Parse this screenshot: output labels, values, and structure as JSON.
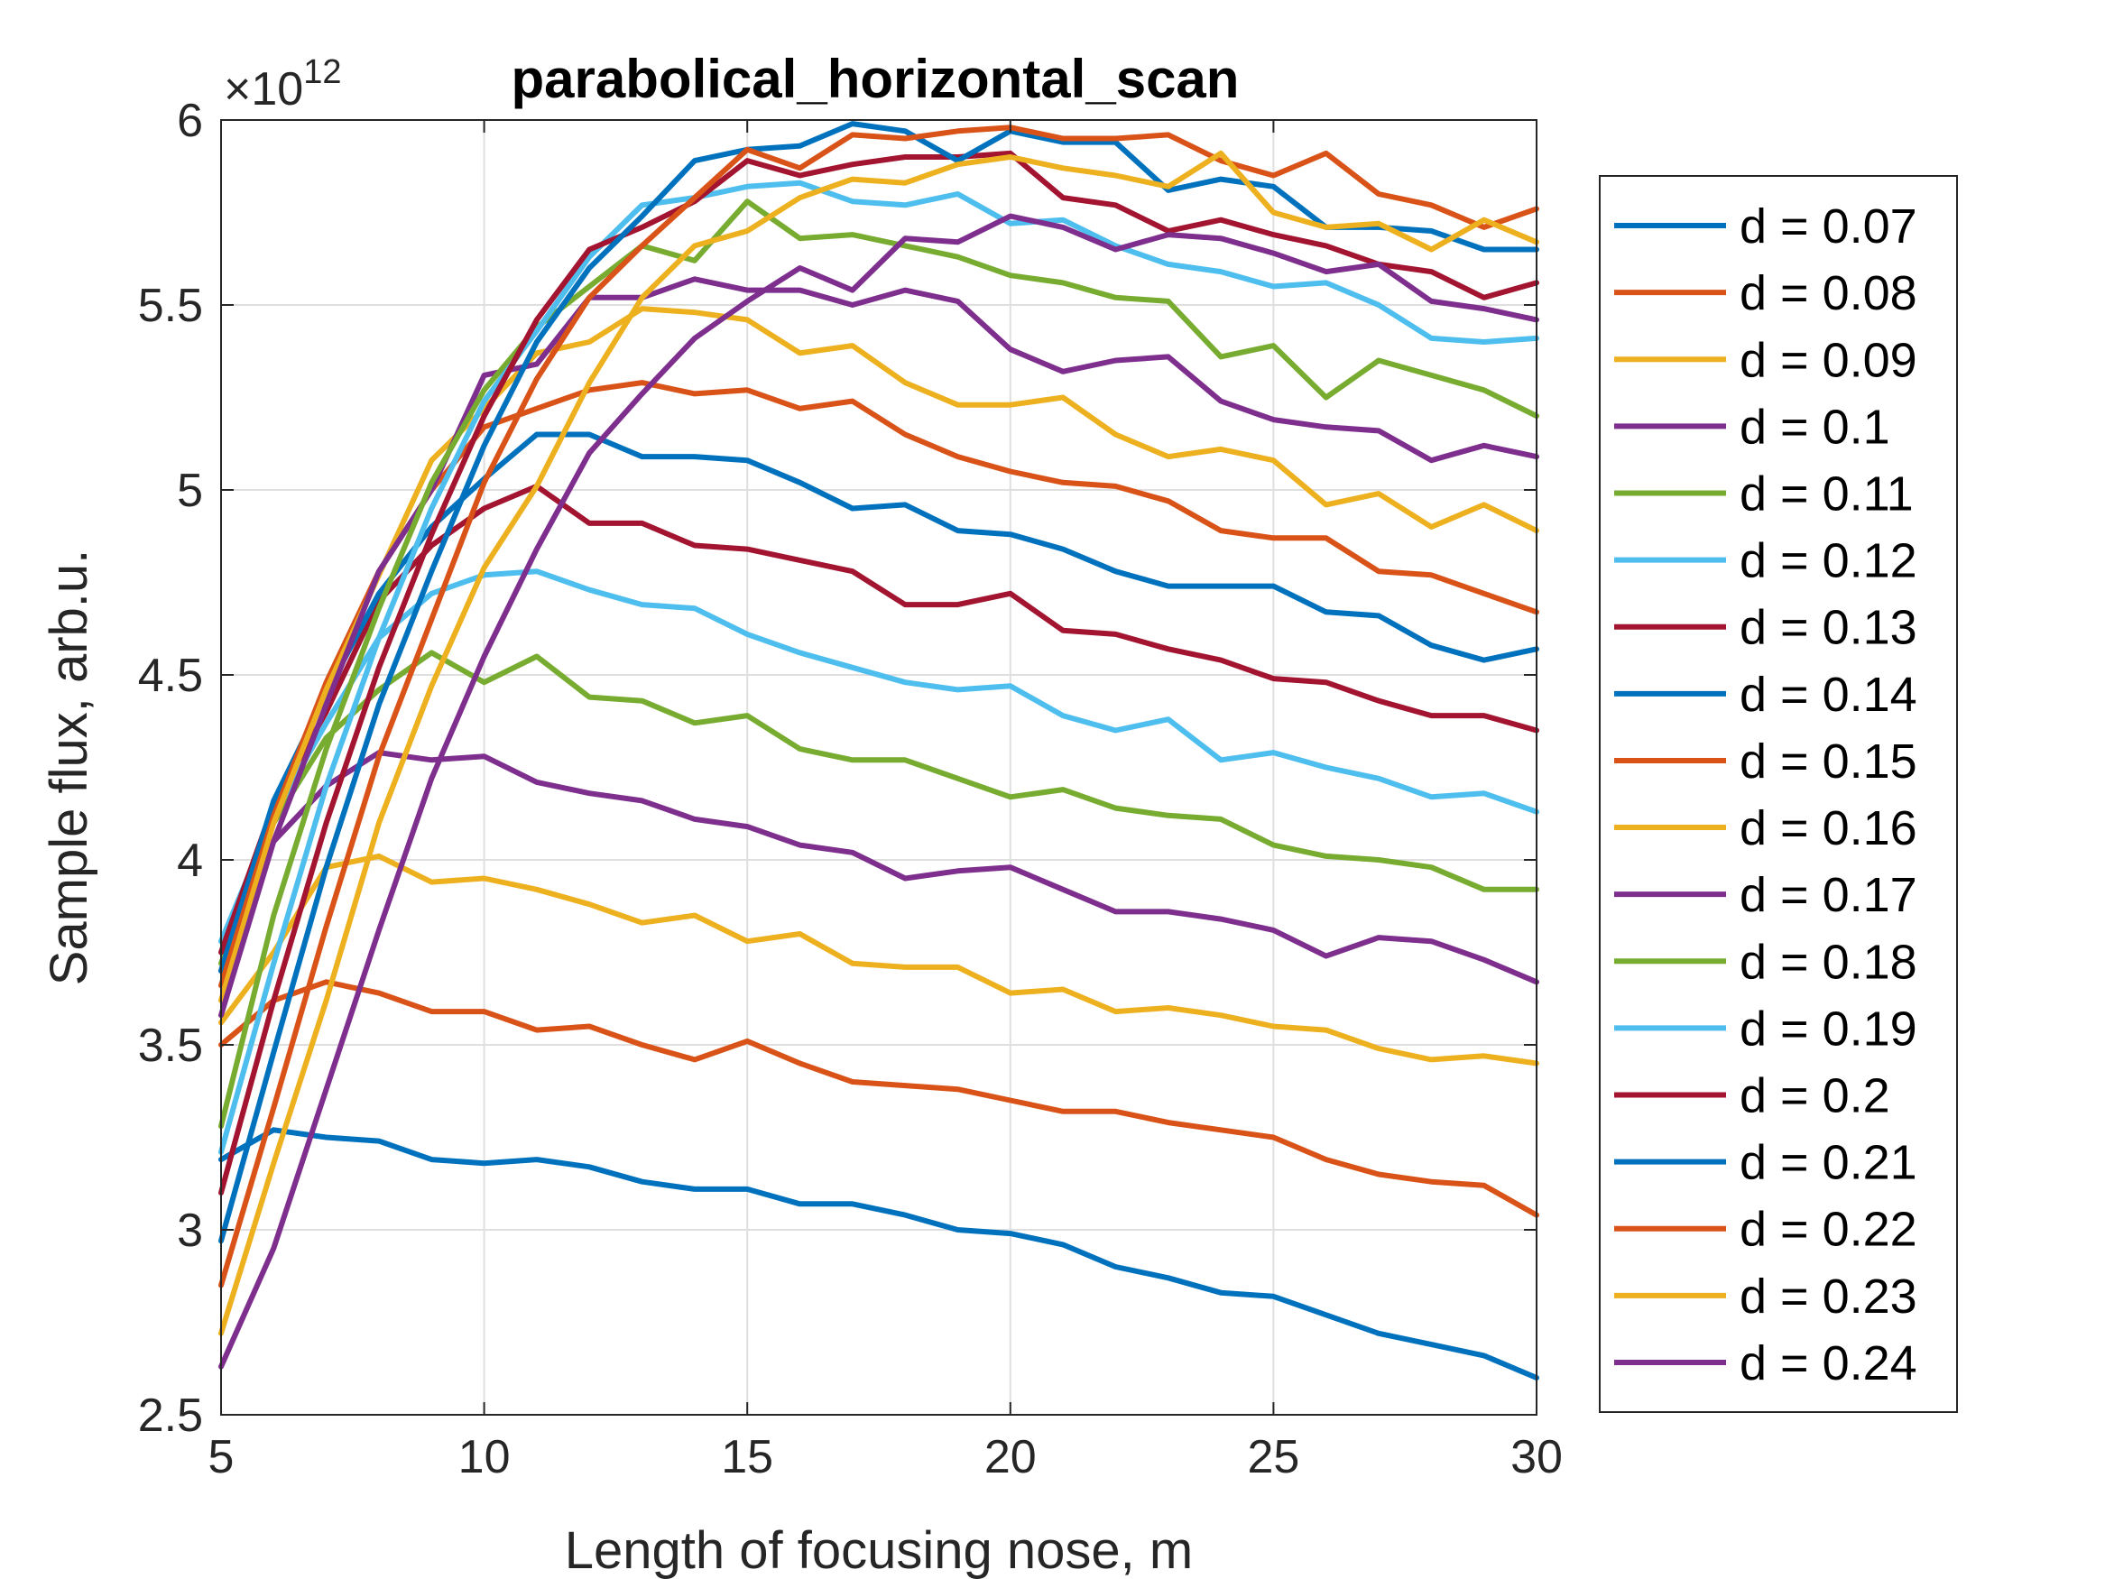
{
  "chart_data": {
    "type": "line",
    "title": "parabolical_horizontal_scan",
    "xlabel": "Length of focusing nose, m",
    "ylabel": "Sample flux, arb.u.",
    "y_exponent_label": "×10",
    "y_exponent_power": "12",
    "xlim": [
      5,
      30
    ],
    "ylim": [
      2.5,
      6
    ],
    "x_ticks": [
      5,
      10,
      15,
      20,
      25,
      30
    ],
    "y_ticks": [
      2.5,
      3,
      3.5,
      4,
      4.5,
      5,
      5.5,
      6
    ],
    "x_tick_labels": [
      "5",
      "10",
      "15",
      "20",
      "25",
      "30"
    ],
    "y_tick_labels": [
      "2.5",
      "3",
      "3.5",
      "4",
      "4.5",
      "5",
      "5.5",
      "6"
    ],
    "grid": true,
    "legend_position": "outside-right",
    "x": [
      5,
      6,
      7,
      8,
      9,
      10,
      11,
      12,
      13,
      14,
      15,
      16,
      17,
      18,
      19,
      20,
      21,
      22,
      23,
      24,
      25,
      26,
      27,
      28,
      29,
      30
    ],
    "series": [
      {
        "name": "d = 0.07",
        "color": "#0072BD",
        "values": [
          3.19,
          3.27,
          3.25,
          3.24,
          3.19,
          3.18,
          3.19,
          3.17,
          3.13,
          3.11,
          3.11,
          3.07,
          3.07,
          3.04,
          3.0,
          2.99,
          2.96,
          2.9,
          2.87,
          2.83,
          2.82,
          2.77,
          2.72,
          2.69,
          2.66,
          2.6
        ]
      },
      {
        "name": "d = 0.08",
        "color": "#D95319",
        "values": [
          3.5,
          3.62,
          3.67,
          3.64,
          3.59,
          3.59,
          3.54,
          3.55,
          3.5,
          3.46,
          3.51,
          3.45,
          3.4,
          3.39,
          3.38,
          3.35,
          3.32,
          3.32,
          3.29,
          3.27,
          3.25,
          3.19,
          3.15,
          3.13,
          3.12,
          3.04
        ]
      },
      {
        "name": "d = 0.09",
        "color": "#EDB120",
        "values": [
          3.56,
          3.75,
          3.98,
          4.01,
          3.94,
          3.95,
          3.92,
          3.88,
          3.83,
          3.85,
          3.78,
          3.8,
          3.72,
          3.71,
          3.71,
          3.64,
          3.65,
          3.59,
          3.6,
          3.58,
          3.55,
          3.54,
          3.49,
          3.46,
          3.47,
          3.45
        ]
      },
      {
        "name": "d = 0.1",
        "color": "#7E2F8E",
        "values": [
          3.7,
          4.05,
          4.2,
          4.29,
          4.27,
          4.28,
          4.21,
          4.18,
          4.16,
          4.11,
          4.09,
          4.04,
          4.02,
          3.95,
          3.97,
          3.98,
          3.92,
          3.86,
          3.86,
          3.84,
          3.81,
          3.74,
          3.79,
          3.78,
          3.73,
          3.67
        ]
      },
      {
        "name": "d = 0.11",
        "color": "#77AC30",
        "values": [
          3.72,
          4.1,
          4.33,
          4.46,
          4.56,
          4.48,
          4.55,
          4.44,
          4.43,
          4.37,
          4.39,
          4.3,
          4.27,
          4.27,
          4.22,
          4.17,
          4.19,
          4.14,
          4.12,
          4.11,
          4.04,
          4.01,
          4.0,
          3.98,
          3.92,
          3.92
        ]
      },
      {
        "name": "d = 0.12",
        "color": "#4DBEEE",
        "values": [
          3.78,
          4.12,
          4.37,
          4.6,
          4.72,
          4.77,
          4.78,
          4.73,
          4.69,
          4.68,
          4.61,
          4.56,
          4.52,
          4.48,
          4.46,
          4.47,
          4.39,
          4.35,
          4.38,
          4.27,
          4.29,
          4.25,
          4.22,
          4.17,
          4.18,
          4.13
        ]
      },
      {
        "name": "d = 0.13",
        "color": "#A2142F",
        "values": [
          3.75,
          4.15,
          4.4,
          4.7,
          4.85,
          4.95,
          5.01,
          4.91,
          4.91,
          4.85,
          4.84,
          4.81,
          4.78,
          4.69,
          4.69,
          4.72,
          4.62,
          4.61,
          4.57,
          4.54,
          4.49,
          4.48,
          4.43,
          4.39,
          4.39,
          4.35
        ]
      },
      {
        "name": "d = 0.14",
        "color": "#0072BD",
        "values": [
          3.7,
          4.16,
          4.45,
          4.72,
          4.9,
          5.03,
          5.15,
          5.15,
          5.09,
          5.09,
          5.08,
          5.02,
          4.95,
          4.96,
          4.89,
          4.88,
          4.84,
          4.78,
          4.74,
          4.74,
          4.74,
          4.67,
          4.66,
          4.58,
          4.54,
          4.57
        ]
      },
      {
        "name": "d = 0.15",
        "color": "#D95319",
        "values": [
          3.66,
          4.12,
          4.48,
          4.78,
          5.0,
          5.17,
          5.22,
          5.27,
          5.29,
          5.26,
          5.27,
          5.22,
          5.24,
          5.15,
          5.09,
          5.05,
          5.02,
          5.01,
          4.97,
          4.89,
          4.87,
          4.87,
          4.78,
          4.77,
          4.72,
          4.67
        ]
      },
      {
        "name": "d = 0.16",
        "color": "#EDB120",
        "values": [
          3.62,
          4.1,
          4.46,
          4.77,
          5.08,
          5.22,
          5.37,
          5.4,
          5.49,
          5.48,
          5.46,
          5.37,
          5.39,
          5.29,
          5.23,
          5.23,
          5.25,
          5.15,
          5.09,
          5.11,
          5.08,
          4.96,
          4.99,
          4.9,
          4.96,
          4.89
        ]
      },
      {
        "name": "d = 0.17",
        "color": "#7E2F8E",
        "values": [
          3.58,
          4.05,
          4.42,
          4.78,
          5.0,
          5.31,
          5.34,
          5.52,
          5.52,
          5.57,
          5.54,
          5.54,
          5.5,
          5.54,
          5.51,
          5.38,
          5.32,
          5.35,
          5.36,
          5.24,
          5.19,
          5.17,
          5.16,
          5.08,
          5.12,
          5.09
        ]
      },
      {
        "name": "d = 0.18",
        "color": "#77AC30",
        "values": [
          3.28,
          3.85,
          4.3,
          4.68,
          5.02,
          5.27,
          5.44,
          5.55,
          5.66,
          5.62,
          5.78,
          5.68,
          5.69,
          5.66,
          5.63,
          5.58,
          5.56,
          5.52,
          5.51,
          5.36,
          5.39,
          5.25,
          5.35,
          5.31,
          5.27,
          5.2
        ]
      },
      {
        "name": "d = 0.19",
        "color": "#4DBEEE",
        "values": [
          3.21,
          3.72,
          4.2,
          4.6,
          4.95,
          5.24,
          5.43,
          5.63,
          5.77,
          5.79,
          5.82,
          5.83,
          5.78,
          5.77,
          5.8,
          5.72,
          5.73,
          5.66,
          5.61,
          5.59,
          5.55,
          5.56,
          5.5,
          5.41,
          5.4,
          5.41
        ]
      },
      {
        "name": "d = 0.2",
        "color": "#A2142F",
        "values": [
          3.1,
          3.62,
          4.1,
          4.52,
          4.88,
          5.2,
          5.46,
          5.65,
          5.71,
          5.78,
          5.89,
          5.85,
          5.88,
          5.9,
          5.9,
          5.91,
          5.79,
          5.77,
          5.7,
          5.73,
          5.69,
          5.66,
          5.61,
          5.59,
          5.52,
          5.56
        ]
      },
      {
        "name": "d = 0.21",
        "color": "#0072BD",
        "values": [
          2.97,
          3.48,
          3.98,
          4.42,
          4.78,
          5.12,
          5.4,
          5.6,
          5.74,
          5.89,
          5.92,
          5.93,
          5.99,
          5.97,
          5.89,
          5.97,
          5.94,
          5.94,
          5.81,
          5.84,
          5.82,
          5.71,
          5.71,
          5.7,
          5.65,
          5.65
        ]
      },
      {
        "name": "d = 0.22",
        "color": "#D95319",
        "values": [
          2.85,
          3.33,
          3.82,
          4.28,
          4.65,
          5.02,
          5.3,
          5.52,
          5.66,
          5.79,
          5.92,
          5.87,
          5.96,
          5.95,
          5.97,
          5.98,
          5.95,
          5.95,
          5.96,
          5.89,
          5.85,
          5.91,
          5.8,
          5.77,
          5.71,
          5.76
        ]
      },
      {
        "name": "d = 0.23",
        "color": "#EDB120",
        "values": [
          2.72,
          3.18,
          3.62,
          4.1,
          4.47,
          4.79,
          5.01,
          5.29,
          5.52,
          5.66,
          5.7,
          5.79,
          5.84,
          5.83,
          5.88,
          5.9,
          5.87,
          5.85,
          5.82,
          5.91,
          5.75,
          5.71,
          5.72,
          5.65,
          5.73,
          5.67
        ]
      },
      {
        "name": "d = 0.24",
        "color": "#7E2F8E",
        "values": [
          2.63,
          2.95,
          3.38,
          3.81,
          4.22,
          4.55,
          4.84,
          5.1,
          5.26,
          5.41,
          5.51,
          5.6,
          5.54,
          5.68,
          5.67,
          5.74,
          5.71,
          5.65,
          5.69,
          5.68,
          5.64,
          5.59,
          5.61,
          5.51,
          5.49,
          5.46
        ]
      }
    ]
  }
}
